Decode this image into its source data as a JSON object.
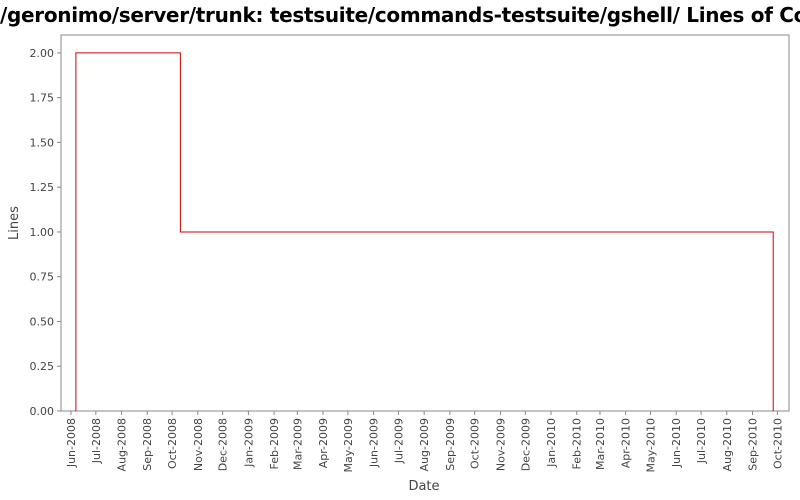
{
  "chart_data": {
    "type": "line",
    "step": true,
    "title": "/geronimo/server/trunk: testsuite/commands-testsuite/gshell/ Lines of Code",
    "xlabel": "Date",
    "ylabel": "Lines",
    "ylim": [
      0,
      2.1
    ],
    "y_ticks": [
      "0.00",
      "0.25",
      "0.50",
      "0.75",
      "1.00",
      "1.25",
      "1.50",
      "1.75",
      "2.00"
    ],
    "x_ticks": [
      "Jun-2008",
      "Jul-2008",
      "Aug-2008",
      "Sep-2008",
      "Oct-2008",
      "Nov-2008",
      "Dec-2008",
      "Jan-2009",
      "Feb-2009",
      "Mar-2009",
      "Apr-2009",
      "May-2009",
      "Jun-2009",
      "Jul-2009",
      "Aug-2009",
      "Sep-2009",
      "Oct-2009",
      "Nov-2009",
      "Dec-2009",
      "Jan-2010",
      "Feb-2010",
      "Mar-2010",
      "Apr-2010",
      "May-2010",
      "Jun-2010",
      "Jul-2010",
      "Aug-2010",
      "Sep-2010",
      "Oct-2010"
    ],
    "xlim": [
      "2008-05-20",
      "2010-10-15"
    ],
    "grid": false,
    "series": [
      {
        "color": "#cc0000",
        "points": [
          {
            "x": "2008-06-07",
            "y": 0
          },
          {
            "x": "2008-06-07",
            "y": 2
          },
          {
            "x": "2008-10-11",
            "y": 2
          },
          {
            "x": "2008-10-11",
            "y": 1
          },
          {
            "x": "2010-09-26",
            "y": 1
          },
          {
            "x": "2010-09-26",
            "y": 0
          }
        ]
      }
    ]
  }
}
